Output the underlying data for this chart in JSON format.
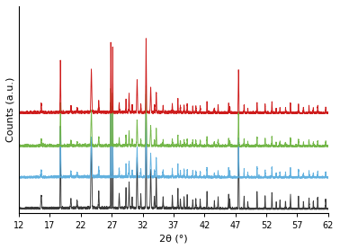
{
  "xmin": 12,
  "xmax": 62,
  "xlabel": "2θ (°)",
  "ylabel": "Counts (a.u.)",
  "colors": [
    "#303030",
    "#5aadde",
    "#6db33f",
    "#cc1111"
  ],
  "offsets": [
    0.0,
    0.17,
    0.34,
    0.52
  ],
  "scale_factors": [
    1.0,
    0.6,
    0.52,
    0.65
  ],
  "noise_levels": [
    0.003,
    0.004,
    0.004,
    0.004
  ],
  "seeds": [
    42,
    7,
    13,
    99
  ],
  "background_color": "#ffffff",
  "tick_positions": [
    12,
    17,
    22,
    27,
    32,
    37,
    42,
    47,
    52,
    57,
    62
  ],
  "ylim": [
    -0.02,
    1.1
  ],
  "all_peaks": [
    15.6,
    18.7,
    20.4,
    21.4,
    23.7,
    24.9,
    26.85,
    27.15,
    28.2,
    29.3,
    29.8,
    30.3,
    31.1,
    31.7,
    32.55,
    33.3,
    33.9,
    34.2,
    35.3,
    36.8,
    37.7,
    38.1,
    38.7,
    39.2,
    40.1,
    40.6,
    41.3,
    42.4,
    43.6,
    44.2,
    45.9,
    46.1,
    47.5,
    48.4,
    49.0,
    50.5,
    51.8,
    52.9,
    53.6,
    54.2,
    55.1,
    55.9,
    57.2,
    58.0,
    58.9,
    59.6,
    60.3,
    61.6
  ],
  "all_heights": [
    0.07,
    0.44,
    0.05,
    0.04,
    0.36,
    0.09,
    0.58,
    0.55,
    0.08,
    0.11,
    0.14,
    0.06,
    0.27,
    0.07,
    0.62,
    0.21,
    0.06,
    0.17,
    0.06,
    0.07,
    0.11,
    0.05,
    0.06,
    0.07,
    0.05,
    0.05,
    0.05,
    0.09,
    0.04,
    0.06,
    0.08,
    0.05,
    0.36,
    0.07,
    0.04,
    0.09,
    0.07,
    0.09,
    0.04,
    0.05,
    0.04,
    0.08,
    0.07,
    0.04,
    0.06,
    0.04,
    0.06,
    0.05
  ],
  "all_widths": [
    0.14,
    0.1,
    0.14,
    0.12,
    0.16,
    0.12,
    0.07,
    0.07,
    0.1,
    0.1,
    0.11,
    0.1,
    0.13,
    0.1,
    0.1,
    0.13,
    0.1,
    0.11,
    0.1,
    0.09,
    0.09,
    0.09,
    0.09,
    0.09,
    0.09,
    0.09,
    0.09,
    0.09,
    0.09,
    0.09,
    0.09,
    0.09,
    0.11,
    0.09,
    0.09,
    0.09,
    0.09,
    0.09,
    0.09,
    0.09,
    0.09,
    0.09,
    0.09,
    0.09,
    0.09,
    0.09,
    0.09,
    0.09
  ]
}
